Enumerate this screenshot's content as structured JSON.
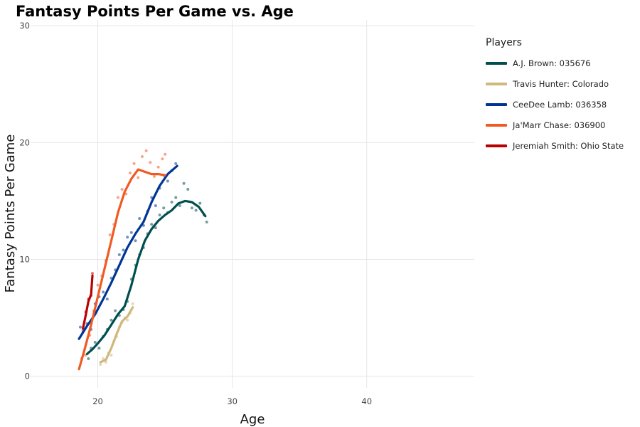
{
  "chart_data": {
    "type": "line",
    "title": "Fantasy Points Per Game vs. Age",
    "xlabel": "Age",
    "ylabel": "Fantasy Points Per Game",
    "xlim": [
      15,
      48
    ],
    "ylim": [
      -1,
      30.5
    ],
    "xticks": [
      20,
      30,
      40
    ],
    "yticks": [
      0,
      10,
      20,
      30
    ],
    "grid": true,
    "legend_title": "Players",
    "legend_position": "right",
    "series": [
      {
        "name": "A.J. Brown: 035676",
        "color": "#004f4f",
        "curve": [
          [
            19.2,
            1.9
          ],
          [
            19.6,
            2.3
          ],
          [
            20.0,
            2.8
          ],
          [
            20.5,
            3.5
          ],
          [
            21.0,
            4.4
          ],
          [
            21.5,
            5.3
          ],
          [
            22.0,
            6.0
          ],
          [
            22.5,
            7.8
          ],
          [
            23.0,
            10.0
          ],
          [
            23.5,
            11.6
          ],
          [
            24.0,
            12.6
          ],
          [
            24.5,
            13.3
          ],
          [
            25.0,
            13.8
          ],
          [
            25.5,
            14.2
          ],
          [
            26.0,
            14.8
          ],
          [
            26.5,
            15.0
          ],
          [
            27.0,
            14.9
          ],
          [
            27.5,
            14.5
          ],
          [
            28.0,
            13.7
          ]
        ],
        "points": [
          [
            19.3,
            1.5
          ],
          [
            19.5,
            2.4
          ],
          [
            19.8,
            2.9
          ],
          [
            20.1,
            2.4
          ],
          [
            20.4,
            3.4
          ],
          [
            20.7,
            4.0
          ],
          [
            21.0,
            4.8
          ],
          [
            21.3,
            5.6
          ],
          [
            21.6,
            5.2
          ],
          [
            21.9,
            5.7
          ],
          [
            22.2,
            6.4
          ],
          [
            22.5,
            8.3
          ],
          [
            22.8,
            9.5
          ],
          [
            23.1,
            10.4
          ],
          [
            23.4,
            11.0
          ],
          [
            23.7,
            12.2
          ],
          [
            24.0,
            13.0
          ],
          [
            24.3,
            12.7
          ],
          [
            24.6,
            13.8
          ],
          [
            24.9,
            14.4
          ],
          [
            25.2,
            14.0
          ],
          [
            25.5,
            14.9
          ],
          [
            25.8,
            15.3
          ],
          [
            26.1,
            14.6
          ],
          [
            26.4,
            16.5
          ],
          [
            26.7,
            16.0
          ],
          [
            27.0,
            14.4
          ],
          [
            27.3,
            14.2
          ],
          [
            27.6,
            14.8
          ],
          [
            27.9,
            13.8
          ],
          [
            28.1,
            13.2
          ]
        ]
      },
      {
        "name": "Travis Hunter: Colorado",
        "color": "#cfb87c",
        "curve": [
          [
            20.2,
            1.2
          ],
          [
            20.6,
            1.4
          ],
          [
            21.0,
            2.4
          ],
          [
            21.4,
            3.6
          ],
          [
            21.8,
            4.7
          ],
          [
            22.2,
            5.1
          ],
          [
            22.6,
            5.9
          ]
        ],
        "points": [
          [
            20.2,
            1.0
          ],
          [
            20.4,
            1.5
          ],
          [
            20.6,
            1.2
          ],
          [
            20.8,
            2.0
          ],
          [
            21.0,
            1.8
          ],
          [
            21.2,
            3.0
          ],
          [
            21.4,
            3.4
          ],
          [
            21.6,
            4.2
          ],
          [
            21.8,
            4.6
          ],
          [
            22.0,
            5.0
          ],
          [
            22.2,
            4.8
          ],
          [
            22.4,
            5.4
          ],
          [
            22.6,
            6.2
          ]
        ]
      },
      {
        "name": "CeeDee Lamb: 036358",
        "color": "#003594",
        "curve": [
          [
            18.6,
            3.2
          ],
          [
            19.2,
            4.3
          ],
          [
            19.8,
            5.3
          ],
          [
            20.4,
            6.6
          ],
          [
            21.0,
            8.0
          ],
          [
            21.6,
            9.5
          ],
          [
            22.2,
            11.0
          ],
          [
            22.8,
            12.2
          ],
          [
            23.4,
            13.2
          ],
          [
            24.0,
            14.9
          ],
          [
            24.6,
            16.3
          ],
          [
            25.2,
            17.3
          ],
          [
            25.9,
            18.0
          ]
        ],
        "points": [
          [
            18.7,
            4.2
          ],
          [
            18.9,
            3.8
          ],
          [
            19.2,
            4.5
          ],
          [
            19.5,
            4.0
          ],
          [
            19.8,
            6.2
          ],
          [
            20.1,
            6.8
          ],
          [
            20.4,
            7.2
          ],
          [
            20.7,
            6.6
          ],
          [
            21.0,
            8.4
          ],
          [
            21.3,
            9.1
          ],
          [
            21.6,
            10.4
          ],
          [
            21.9,
            10.8
          ],
          [
            22.2,
            11.9
          ],
          [
            22.5,
            12.3
          ],
          [
            22.8,
            11.6
          ],
          [
            23.1,
            13.5
          ],
          [
            23.4,
            12.9
          ],
          [
            23.7,
            14.1
          ],
          [
            24.0,
            15.3
          ],
          [
            24.3,
            14.6
          ],
          [
            24.6,
            16.1
          ],
          [
            24.9,
            17.2
          ],
          [
            25.2,
            16.7
          ],
          [
            25.5,
            17.6
          ],
          [
            25.8,
            18.2
          ]
        ]
      },
      {
        "name": "Ja'Marr Chase: 036900",
        "color": "#f15a22",
        "curve": [
          [
            18.6,
            0.6
          ],
          [
            19.0,
            2.2
          ],
          [
            19.5,
            4.4
          ],
          [
            20.0,
            6.8
          ],
          [
            20.5,
            9.2
          ],
          [
            21.0,
            11.6
          ],
          [
            21.5,
            14.0
          ],
          [
            22.0,
            15.8
          ],
          [
            22.5,
            16.9
          ],
          [
            23.0,
            17.7
          ],
          [
            23.5,
            17.5
          ],
          [
            24.0,
            17.3
          ],
          [
            24.5,
            17.3
          ],
          [
            25.0,
            17.2
          ]
        ],
        "points": [
          [
            18.8,
            1.5
          ],
          [
            19.1,
            1.8
          ],
          [
            19.4,
            3.5
          ],
          [
            19.7,
            5.6
          ],
          [
            20.0,
            7.8
          ],
          [
            20.3,
            8.6
          ],
          [
            20.6,
            9.9
          ],
          [
            20.9,
            12.1
          ],
          [
            21.2,
            13.0
          ],
          [
            21.5,
            15.3
          ],
          [
            21.8,
            16.0
          ],
          [
            22.1,
            15.6
          ],
          [
            22.4,
            17.4
          ],
          [
            22.7,
            18.2
          ],
          [
            23.0,
            17.0
          ],
          [
            23.3,
            18.8
          ],
          [
            23.6,
            19.3
          ],
          [
            23.9,
            18.3
          ],
          [
            24.2,
            17.1
          ],
          [
            24.5,
            17.9
          ],
          [
            24.8,
            18.6
          ],
          [
            25.0,
            19.0
          ]
        ]
      },
      {
        "name": "Jeremiah Smith: Ohio State",
        "color": "#bb0000",
        "curve": [
          [
            18.9,
            4.1
          ],
          [
            19.1,
            5.2
          ],
          [
            19.3,
            6.4
          ],
          [
            19.5,
            7.0
          ],
          [
            19.6,
            8.6
          ]
        ],
        "points": [
          [
            18.9,
            4.0
          ],
          [
            19.1,
            5.5
          ],
          [
            19.3,
            6.6
          ],
          [
            19.5,
            6.9
          ],
          [
            19.6,
            8.8
          ]
        ]
      }
    ]
  }
}
